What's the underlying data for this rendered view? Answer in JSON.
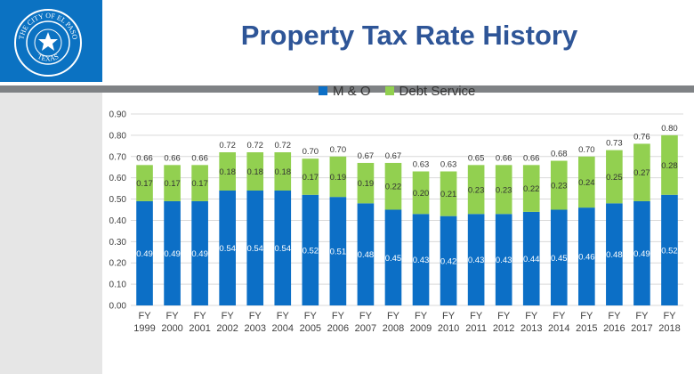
{
  "header": {
    "title": "Property Tax Rate History",
    "seal_text_top": "THE CITY OF EL PASO",
    "seal_text_bottom": "TEXAS"
  },
  "colors": {
    "header_blue": "#0b72c2",
    "mo": "#0c6fc6",
    "debt": "#92d050",
    "title": "#2e5597"
  },
  "chart_data": {
    "type": "bar",
    "stacked": true,
    "title": "Property Tax Rate History",
    "xlabel": "",
    "ylabel": "",
    "ylim": [
      0,
      0.9
    ],
    "yticks": [
      "0.00",
      "0.10",
      "0.20",
      "0.30",
      "0.40",
      "0.50",
      "0.60",
      "0.70",
      "0.80",
      "0.90"
    ],
    "grid": true,
    "legend": "top",
    "categories": [
      [
        "FY",
        "1999"
      ],
      [
        "FY",
        "2000"
      ],
      [
        "FY",
        "2001"
      ],
      [
        "FY",
        "2002"
      ],
      [
        "FY",
        "2003"
      ],
      [
        "FY",
        "2004"
      ],
      [
        "FY",
        "2005"
      ],
      [
        "FY",
        "2006"
      ],
      [
        "FY",
        "2007"
      ],
      [
        "FY",
        "2008"
      ],
      [
        "FY",
        "2009"
      ],
      [
        "FY",
        "2010"
      ],
      [
        "FY",
        "2011"
      ],
      [
        "FY",
        "2012"
      ],
      [
        "FY",
        "2013"
      ],
      [
        "FY",
        "2014"
      ],
      [
        "FY",
        "2015"
      ],
      [
        "FY",
        "2016"
      ],
      [
        "FY",
        "2017"
      ],
      [
        "FY",
        "2018"
      ]
    ],
    "series": [
      {
        "name": "M & O",
        "color": "#0c6fc6",
        "values": [
          0.49,
          0.49,
          0.49,
          0.54,
          0.54,
          0.54,
          0.52,
          0.51,
          0.48,
          0.45,
          0.43,
          0.42,
          0.43,
          0.43,
          0.44,
          0.45,
          0.46,
          0.48,
          0.49,
          0.52
        ]
      },
      {
        "name": "Debt Service",
        "color": "#92d050",
        "values": [
          0.17,
          0.17,
          0.17,
          0.18,
          0.18,
          0.18,
          0.17,
          0.19,
          0.19,
          0.22,
          0.2,
          0.21,
          0.23,
          0.23,
          0.22,
          0.23,
          0.24,
          0.25,
          0.27,
          0.28
        ]
      }
    ],
    "totals": [
      0.66,
      0.66,
      0.66,
      0.72,
      0.72,
      0.72,
      0.7,
      0.7,
      0.67,
      0.67,
      0.63,
      0.63,
      0.65,
      0.66,
      0.66,
      0.68,
      0.7,
      0.73,
      0.76,
      0.8
    ]
  }
}
